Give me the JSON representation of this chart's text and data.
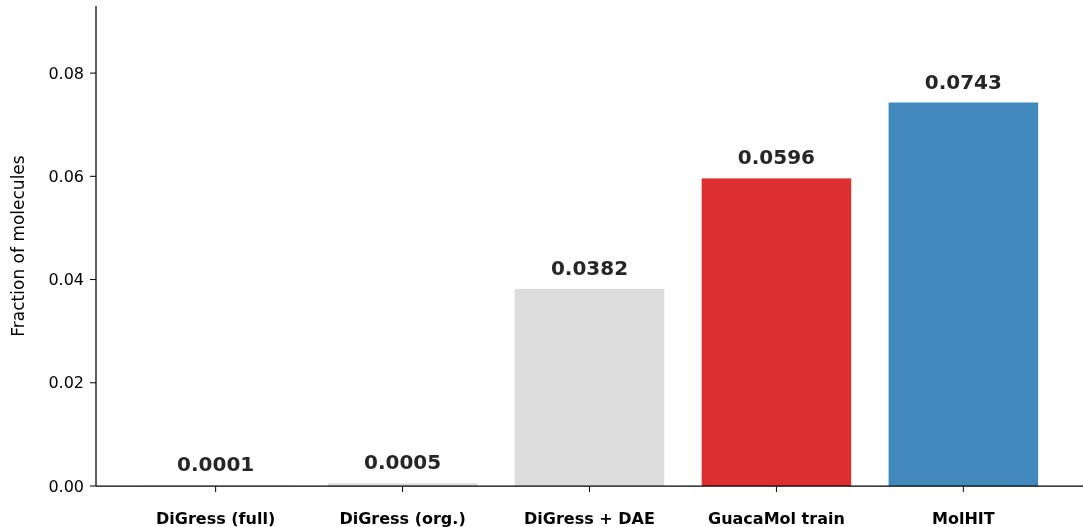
{
  "chart_data": {
    "type": "bar",
    "ylabel": "Fraction of molecules",
    "categories": [
      "DiGress (full)",
      "DiGress (org.)",
      "DiGress + DAE",
      "GuacaMol train",
      "MolHIT"
    ],
    "values": [
      0.0001,
      0.0005,
      0.0382,
      0.0596,
      0.0743
    ],
    "colors": [
      "#dcdcdc",
      "#dcdcdc",
      "#dcdcdc",
      "#dc2f32",
      "#4189bd"
    ],
    "ylim": [
      0,
      0.093
    ],
    "yticks": [
      {
        "value": 0,
        "label": "0.00"
      },
      0.02,
      0.04,
      0.06,
      0.08
    ],
    "data_labels": true,
    "grid": false
  }
}
